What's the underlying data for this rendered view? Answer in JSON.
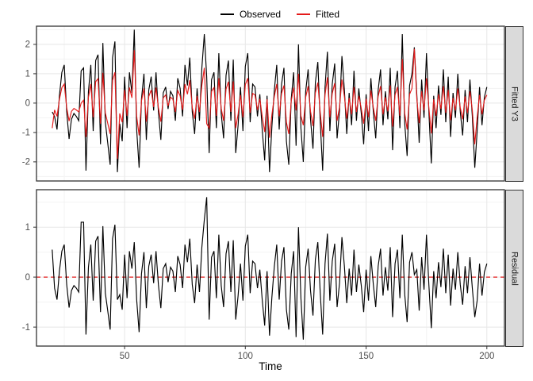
{
  "legend": {
    "items": [
      {
        "label": "Observed",
        "color": "#000000"
      },
      {
        "label": "Fitted",
        "color": "#E41A1A"
      }
    ]
  },
  "colors": {
    "grid_major": "#E7E7E7",
    "grid_minor": "#F3F3F3",
    "panel_border": "#333333",
    "panel_bg": "#FFFFFF",
    "axis_text": "#4D4D4D",
    "strip_bg": "#DADADA",
    "observed": "#000000",
    "fitted": "#E41A1A",
    "zero_line": "#E41A1A"
  },
  "x_axis": {
    "title": "Time"
  },
  "chart_data": [
    {
      "type": "line",
      "title": "Fitted Y3",
      "xlabel": "",
      "ylabel": "",
      "x_start": 20,
      "x_step": 1,
      "xlim": [
        13.5,
        207.3
      ],
      "ylim": [
        -2.65,
        2.62
      ],
      "xticks": [
        50,
        100,
        150,
        200
      ],
      "xticks_minor": [
        25,
        75,
        125,
        175
      ],
      "yticks": [
        -2,
        -1,
        0,
        1,
        2
      ],
      "yticks_minor": [
        -2.5,
        -1.5,
        -0.5,
        0.5,
        1.5,
        2.5
      ],
      "grid": true,
      "legend_position": "top",
      "series": [
        {
          "name": "Observed",
          "color": "#000000",
          "values": [
            -0.3,
            -0.45,
            -0.9,
            0.25,
            1.05,
            1.3,
            -0.3,
            -1.22,
            -0.55,
            -0.35,
            -0.45,
            -0.6,
            1.1,
            1.2,
            -2.3,
            0.4,
            1.3,
            -0.95,
            1.45,
            1.65,
            -1.4,
            2.05,
            -0.65,
            -1.35,
            -2.1,
            1.55,
            2.1,
            -2.35,
            -0.7,
            -1.3,
            0.9,
            -0.85,
            1.05,
            0.35,
            2.5,
            -0.9,
            -2.2,
            0.15,
            1.0,
            -1.25,
            0.45,
            0.9,
            -0.25,
            1.05,
            -0.3,
            -1.25,
            0.35,
            0.55,
            -0.2,
            0.4,
            0.25,
            -0.6,
            0.85,
            0.5,
            -0.45,
            1.3,
            0.6,
            1.55,
            -0.3,
            -1.05,
            0.5,
            -0.6,
            1.2,
            2.35,
            0.9,
            -1.7,
            0.8,
            1.05,
            -0.85,
            1.7,
            -0.35,
            -1.2,
            0.95,
            1.45,
            -0.6,
            1.48,
            -1.7,
            -0.75,
            0.55,
            -0.95,
            1.25,
            1.7,
            -0.65,
            0.65,
            0.55,
            -0.45,
            0.3,
            -0.9,
            -1.95,
            0.25,
            -2.35,
            -0.8,
            0.45,
            1.3,
            -0.9,
            0.65,
            1.2,
            -1.3,
            -2.1,
            0.15,
            1.05,
            -1.45,
            2.0,
            -0.85,
            -2.0,
            0.4,
            1.15,
            -0.55,
            -1.55,
            0.7,
            1.4,
            -0.6,
            -2.3,
            0.55,
            1.75,
            -0.95,
            0.65,
            1.35,
            -1.2,
            -0.25,
            1.6,
            0.45,
            -1.05,
            0.35,
            -0.75,
            1.1,
            -0.6,
            0.5,
            -0.35,
            -1.4,
            0.3,
            -0.95,
            0.85,
            -0.3,
            -1.2,
            0.45,
            1.15,
            -0.75,
            0.4,
            -0.55,
            1.2,
            -1.6,
            0.55,
            1.1,
            -0.85,
            2.35,
            -0.7,
            -1.8,
            0.6,
            1.0,
            1.9,
            0.3,
            -1.35,
            0.8,
            -0.5,
            1.7,
            -0.3,
            -2.05,
            0.25,
            -0.85,
            0.6,
            -0.4,
            1.15,
            -0.65,
            0.9,
            -1.15,
            0.35,
            -0.5,
            1.0,
            -0.3,
            -1.1,
            0.45,
            -0.65,
            0.8,
            -0.45,
            -2.2,
            -0.95,
            0.55,
            -0.75,
            0.2,
            0.55
          ]
        },
        {
          "name": "Fitted",
          "color": "#E41A1A",
          "values": [
            -0.85,
            -0.23,
            -0.45,
            0.13,
            0.53,
            0.65,
            -0.15,
            -0.61,
            -0.28,
            -0.18,
            -0.23,
            -0.3,
            0.0,
            0.1,
            -1.15,
            0.2,
            0.65,
            -0.48,
            0.73,
            0.83,
            -0.7,
            1.03,
            -0.33,
            -0.68,
            -1.05,
            0.78,
            1.05,
            -1.9,
            -0.35,
            -0.65,
            0.45,
            -0.43,
            0.53,
            0.18,
            1.8,
            -0.45,
            -1.1,
            0.08,
            0.5,
            -0.63,
            0.23,
            0.45,
            -0.13,
            0.53,
            -0.15,
            -0.63,
            0.18,
            0.28,
            -0.1,
            0.2,
            0.13,
            -0.3,
            0.43,
            0.25,
            -0.23,
            0.65,
            0.3,
            0.78,
            -0.15,
            -0.53,
            0.25,
            -0.3,
            0.6,
            1.2,
            -0.7,
            -0.85,
            0.4,
            0.53,
            -0.43,
            0.85,
            -0.18,
            -0.6,
            0.48,
            0.73,
            -0.3,
            0.74,
            -0.85,
            -0.38,
            0.28,
            -0.48,
            0.63,
            0.85,
            -0.33,
            0.33,
            0.28,
            -0.23,
            0.15,
            -0.45,
            -0.98,
            0.13,
            -1.18,
            -0.4,
            0.23,
            0.65,
            -0.45,
            0.33,
            0.6,
            -0.65,
            -1.05,
            0.08,
            0.53,
            -0.25,
            1.0,
            -0.43,
            -0.75,
            0.2,
            0.58,
            -0.28,
            -0.78,
            0.35,
            0.7,
            -0.3,
            -1.15,
            0.28,
            0.88,
            -0.48,
            0.33,
            0.68,
            -0.6,
            -0.13,
            0.8,
            0.23,
            -0.53,
            0.18,
            -0.38,
            0.55,
            -0.3,
            0.25,
            -0.18,
            -0.7,
            0.15,
            -0.48,
            0.43,
            -0.15,
            -0.6,
            0.23,
            0.58,
            -0.38,
            0.2,
            -0.28,
            0.6,
            -0.8,
            0.28,
            0.55,
            -0.43,
            1.5,
            -0.35,
            -0.9,
            0.3,
            0.5,
            1.85,
            0.15,
            -0.68,
            0.4,
            -0.25,
            0.85,
            -0.15,
            -1.03,
            0.13,
            -0.43,
            0.3,
            -0.2,
            0.58,
            -0.33,
            0.45,
            -0.58,
            0.18,
            -0.25,
            0.5,
            -0.15,
            -0.55,
            0.23,
            -0.33,
            0.4,
            -0.23,
            -1.4,
            -0.48,
            0.28,
            -0.38,
            0.1,
            0.28
          ]
        }
      ]
    },
    {
      "type": "line",
      "title": "Residual",
      "xlabel": "Time",
      "ylabel": "",
      "x_start": 20,
      "x_step": 1,
      "xlim": [
        13.5,
        207.3
      ],
      "ylim": [
        -1.38,
        1.75
      ],
      "xticks": [
        50,
        100,
        150,
        200
      ],
      "xticks_minor": [
        25,
        75,
        125,
        175
      ],
      "yticks": [
        -1,
        0,
        1
      ],
      "yticks_minor": [
        -0.5,
        0.5,
        1.5
      ],
      "grid": true,
      "hline": {
        "y": 0,
        "color": "#E41A1A",
        "style": "dashed"
      },
      "series": [
        {
          "name": "Residual",
          "color": "#000000",
          "values": [
            0.55,
            -0.22,
            -0.45,
            0.12,
            0.52,
            0.65,
            -0.15,
            -0.61,
            -0.27,
            -0.17,
            -0.22,
            -0.3,
            1.1,
            1.1,
            -1.15,
            0.2,
            0.65,
            -0.47,
            0.72,
            0.82,
            -0.7,
            1.02,
            -0.32,
            -0.67,
            -1.05,
            0.77,
            1.05,
            -0.45,
            -0.35,
            -0.65,
            0.45,
            -0.42,
            0.52,
            0.17,
            0.7,
            -0.45,
            -1.1,
            0.07,
            0.5,
            -0.62,
            0.22,
            0.45,
            -0.12,
            0.52,
            -0.15,
            -0.62,
            0.17,
            0.27,
            -0.1,
            0.2,
            0.12,
            -0.3,
            0.42,
            0.25,
            -0.22,
            0.65,
            0.3,
            0.77,
            -0.15,
            -0.52,
            0.25,
            -0.3,
            0.6,
            1.15,
            1.6,
            -0.85,
            0.4,
            0.52,
            -0.42,
            0.85,
            -0.17,
            -0.6,
            0.47,
            0.72,
            -0.3,
            0.74,
            -0.85,
            -0.37,
            0.27,
            -0.47,
            0.62,
            0.85,
            -0.32,
            0.32,
            0.27,
            -0.22,
            0.15,
            -0.45,
            -0.97,
            0.12,
            -1.17,
            -0.4,
            0.22,
            0.65,
            -0.45,
            0.32,
            0.6,
            -0.65,
            -1.05,
            0.07,
            0.52,
            -1.2,
            1.0,
            -0.42,
            -1.25,
            0.2,
            0.57,
            -0.27,
            -0.77,
            0.35,
            0.7,
            -0.3,
            -1.15,
            0.27,
            0.87,
            -0.47,
            0.32,
            0.67,
            -0.6,
            -0.12,
            0.8,
            0.22,
            -0.52,
            0.17,
            -0.37,
            0.55,
            -0.3,
            0.25,
            -0.17,
            -0.7,
            0.15,
            -0.47,
            0.42,
            -0.15,
            -0.6,
            0.22,
            0.57,
            -0.37,
            0.2,
            -0.27,
            0.6,
            -0.8,
            0.27,
            0.55,
            -0.42,
            0.85,
            -0.35,
            -0.9,
            0.3,
            0.5,
            0.05,
            0.15,
            -0.67,
            0.4,
            -0.25,
            0.85,
            -0.15,
            -1.02,
            0.12,
            -0.42,
            0.3,
            -0.2,
            0.57,
            -0.32,
            0.45,
            -0.57,
            0.17,
            -0.25,
            0.5,
            -0.15,
            -0.55,
            0.22,
            -0.32,
            0.4,
            -0.22,
            -0.8,
            -0.47,
            0.27,
            -0.37,
            0.1,
            0.27
          ]
        }
      ]
    }
  ]
}
